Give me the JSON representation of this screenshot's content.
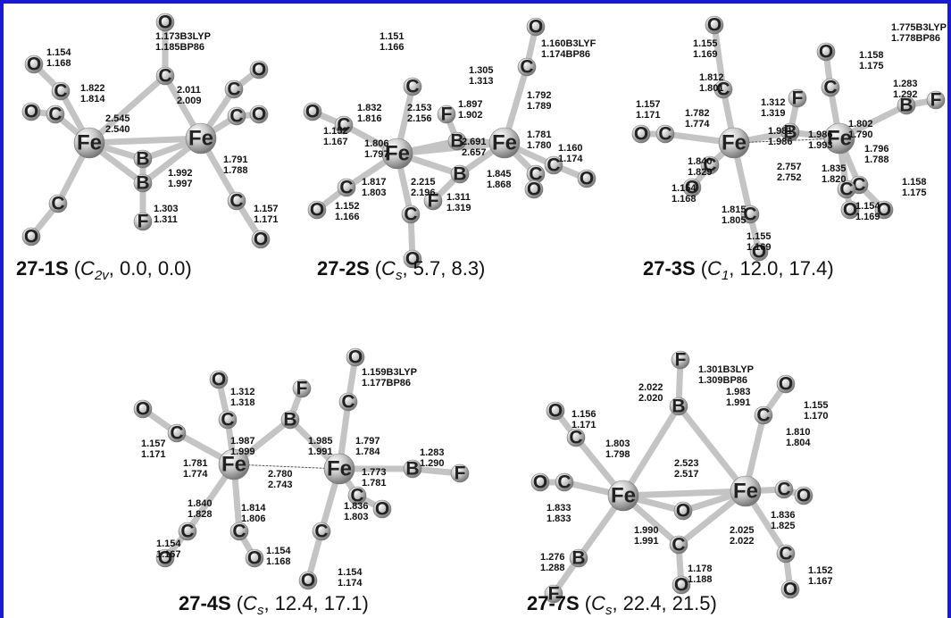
{
  "figure": {
    "structures": [
      {
        "atoms": [
          "O",
          "C",
          "O",
          "C",
          "O",
          "C",
          "Fe",
          "Fe",
          "O",
          "C",
          "C",
          "O",
          "B",
          "B",
          "F",
          "C",
          "O",
          "C",
          "O"
        ],
        "bond_lengths": [
          [
            "1.154",
            "1.168"
          ],
          [
            "1.173B3LYP",
            "1.185BP86"
          ],
          [
            "1.822",
            "1.814"
          ],
          [
            "2.011",
            "2.009"
          ],
          [
            "2.545",
            "2.540"
          ],
          [
            "1.791",
            "1.788"
          ],
          [
            "1.992",
            "1.997"
          ],
          [
            "1.303",
            "1.311"
          ],
          [
            "1.157",
            "1.171"
          ]
        ],
        "caption": {
          "name": "27-1S",
          "prefix": "(",
          "symbol": "C",
          "subscript": "2v",
          "rest": ", 0.0, 0.0)"
        }
      },
      {
        "atoms": [
          "O",
          "C",
          "C",
          "F",
          "B",
          "O",
          "C",
          "Fe",
          "Fe",
          "C",
          "O",
          "C",
          "O",
          "C",
          "O",
          "B",
          "F",
          "C",
          "O"
        ],
        "bond_lengths": [
          [
            "1.151",
            "1.166"
          ],
          [
            "1.305",
            "1.313"
          ],
          [
            "1.160B3LYF",
            "1.174BP86"
          ],
          [
            "1.832",
            "1.816"
          ],
          [
            "2.153",
            "2.156"
          ],
          [
            "1.897",
            "1.902"
          ],
          [
            "1.792",
            "1.789"
          ],
          [
            "1.152",
            "1.167"
          ],
          [
            "1.806",
            "1.797"
          ],
          [
            "2.691",
            "2.657"
          ],
          [
            "1.781",
            "1.780"
          ],
          [
            "1.160",
            "1.174"
          ],
          [
            "1.817",
            "1.803"
          ],
          [
            "2.215",
            "2.196"
          ],
          [
            "1.845",
            "1.868"
          ],
          [
            "1.311",
            "1.319"
          ],
          [
            "1.152",
            "1.166"
          ]
        ],
        "caption": {
          "name": "27-2S",
          "prefix": "(",
          "symbol": "C",
          "subscript": "s",
          "rest": ", 5.7, 8.3)"
        }
      },
      {
        "atoms": [
          "O",
          "C",
          "O",
          "C",
          "F",
          "B",
          "B",
          "F",
          "O",
          "C",
          "Fe",
          "Fe",
          "C",
          "O",
          "C",
          "O",
          "C",
          "O",
          "C",
          "O"
        ],
        "bond_lengths": [
          [
            "1.155",
            "1.169"
          ],
          [
            "1.775B3LYP",
            "1.778BP86"
          ],
          [
            "1.812",
            "1.801"
          ],
          [
            "1.312",
            "1.319"
          ],
          [
            "1.158",
            "1.175"
          ],
          [
            "1.283",
            "1.292"
          ],
          [
            "1.157",
            "1.171"
          ],
          [
            "1.782",
            "1.774"
          ],
          [
            "1.981",
            "1.986"
          ],
          [
            "1.802",
            "1.790"
          ],
          [
            "1.986",
            "1.993"
          ],
          [
            "1.796",
            "1.788"
          ],
          [
            "1.840",
            "1.829"
          ],
          [
            "2.757",
            "2.752"
          ],
          [
            "1.835",
            "1.820"
          ],
          [
            "1.154",
            "1.168"
          ],
          [
            "1.815",
            "1.805"
          ],
          [
            "1.158",
            "1.175"
          ],
          [
            "1.154",
            "1.169"
          ],
          [
            "1.155",
            "1.169"
          ]
        ],
        "caption": {
          "name": "27-3S",
          "prefix": "(",
          "symbol": "C",
          "subscript": "1",
          "rest": ", 12.0, 17.4)"
        }
      },
      {
        "atoms": [
          "O",
          "C",
          "F",
          "B",
          "O",
          "C",
          "O",
          "C",
          "Fe",
          "Fe",
          "B",
          "F",
          "C",
          "O",
          "C",
          "O",
          "C",
          "O",
          "C",
          "O"
        ],
        "bond_lengths": [
          [
            "1.312",
            "1.318"
          ],
          [
            "1.159B3LYP",
            "1.177BP86"
          ],
          [
            "1.987",
            "1.999"
          ],
          [
            "1.985",
            "1.991"
          ],
          [
            "1.797",
            "1.784"
          ],
          [
            "1.157",
            "1.171"
          ],
          [
            "1.781",
            "1.774"
          ],
          [
            "2.780",
            "2.743"
          ],
          [
            "1.773",
            "1.781"
          ],
          [
            "1.283",
            "1.290"
          ],
          [
            "1.840",
            "1.828"
          ],
          [
            "1.814",
            "1.806"
          ],
          [
            "1.836",
            "1.803"
          ],
          [
            "1.154",
            "1.167"
          ],
          [
            "1.154",
            "1.168"
          ],
          [
            "1.154",
            "1.174"
          ]
        ],
        "caption": {
          "name": "27-4S",
          "prefix": "(",
          "symbol": "C",
          "subscript": "s",
          "rest": ", 12.4, 17.1)"
        }
      },
      {
        "atoms": [
          "F",
          "B",
          "O",
          "C",
          "O",
          "C",
          "O",
          "C",
          "Fe",
          "Fe",
          "O",
          "C",
          "O",
          "B",
          "F",
          "C",
          "O",
          "C",
          "O"
        ],
        "bond_lengths": [
          [
            "1.156",
            "1.171"
          ],
          [
            "1.301B3LYP",
            "1.309BP86"
          ],
          [
            "2.022",
            "2.020"
          ],
          [
            "1.803",
            "1.798"
          ],
          [
            "1.983",
            "1.991"
          ],
          [
            "1.155",
            "1.170"
          ],
          [
            "1.810",
            "1.804"
          ],
          [
            "2.523",
            "2.517"
          ],
          [
            "1.833",
            "1.833"
          ],
          [
            "1.990",
            "1.991"
          ],
          [
            "2.025",
            "2.022"
          ],
          [
            "1.836",
            "1.825"
          ],
          [
            "1.276",
            "1.288"
          ],
          [
            "1.178",
            "1.188"
          ],
          [
            "1.152",
            "1.167"
          ]
        ],
        "caption": {
          "name": "27-7S",
          "prefix": "(",
          "symbol": "C",
          "subscript": "s",
          "rest": ", 22.4, 21.5)"
        }
      }
    ]
  }
}
